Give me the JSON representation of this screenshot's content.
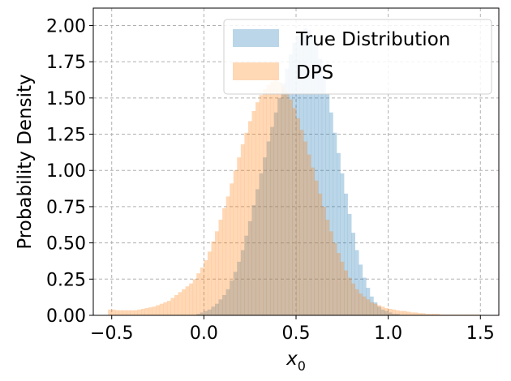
{
  "chart_data": {
    "type": "histogram",
    "title": "",
    "xlabel": "x",
    "xlabel_subscript": "0",
    "ylabel": "Probability Density",
    "xlim": [
      -0.6,
      1.6
    ],
    "ylim": [
      0.0,
      2.12
    ],
    "xticks": [
      "−0.5",
      "0.0",
      "0.5",
      "1.0",
      "1.5"
    ],
    "xtick_values": [
      -0.5,
      0.0,
      0.5,
      1.0,
      1.5
    ],
    "yticks": [
      "0.00",
      "0.25",
      "0.50",
      "0.75",
      "1.00",
      "1.25",
      "1.50",
      "1.75",
      "2.00"
    ],
    "ytick_values": [
      0.0,
      0.25,
      0.5,
      0.75,
      1.0,
      1.25,
      1.5,
      1.75,
      2.0
    ],
    "grid": true,
    "legend_position": "top-right",
    "bin_width": 0.02,
    "series": [
      {
        "name": "True Distribution",
        "color": "#1f77b4",
        "alpha": 0.3,
        "bin_start": -0.04,
        "values": [
          0.01,
          0.02,
          0.03,
          0.04,
          0.06,
          0.08,
          0.11,
          0.14,
          0.18,
          0.24,
          0.3,
          0.37,
          0.45,
          0.55,
          0.65,
          0.76,
          0.87,
          0.98,
          1.09,
          1.2,
          1.3,
          1.4,
          1.5,
          1.6,
          1.7,
          1.8,
          1.88,
          1.93,
          1.96,
          1.98,
          1.97,
          1.93,
          1.86,
          1.77,
          1.66,
          1.53,
          1.4,
          1.26,
          1.12,
          0.98,
          0.84,
          0.7,
          0.57,
          0.45,
          0.35,
          0.26,
          0.19,
          0.13,
          0.09,
          0.06,
          0.04,
          0.03,
          0.02,
          0.01,
          0.01
        ]
      },
      {
        "name": "DPS",
        "color": "#ff7f0e",
        "alpha": 0.3,
        "bin_start": -0.52,
        "values": [
          0.04,
          0.04,
          0.035,
          0.035,
          0.035,
          0.035,
          0.035,
          0.035,
          0.04,
          0.045,
          0.05,
          0.055,
          0.06,
          0.07,
          0.08,
          0.09,
          0.1,
          0.12,
          0.14,
          0.16,
          0.18,
          0.2,
          0.22,
          0.25,
          0.29,
          0.33,
          0.38,
          0.44,
          0.51,
          0.58,
          0.66,
          0.74,
          0.82,
          0.91,
          1.0,
          1.09,
          1.18,
          1.26,
          1.34,
          1.41,
          1.47,
          1.52,
          1.56,
          1.59,
          1.61,
          1.62,
          1.61,
          1.58,
          1.54,
          1.49,
          1.43,
          1.36,
          1.28,
          1.2,
          1.11,
          1.02,
          0.93,
          0.84,
          0.75,
          0.66,
          0.58,
          0.5,
          0.43,
          0.37,
          0.31,
          0.26,
          0.22,
          0.18,
          0.15,
          0.13,
          0.11,
          0.09,
          0.08,
          0.07,
          0.06,
          0.05,
          0.045,
          0.04,
          0.035,
          0.03,
          0.03,
          0.025,
          0.02,
          0.02,
          0.015,
          0.015,
          0.01,
          0.01,
          0.01,
          0.01,
          0.005,
          0.005,
          0.005,
          0.005,
          0.005,
          0.005,
          0.005,
          0.005,
          0.005,
          0.005,
          0.005
        ]
      }
    ]
  }
}
